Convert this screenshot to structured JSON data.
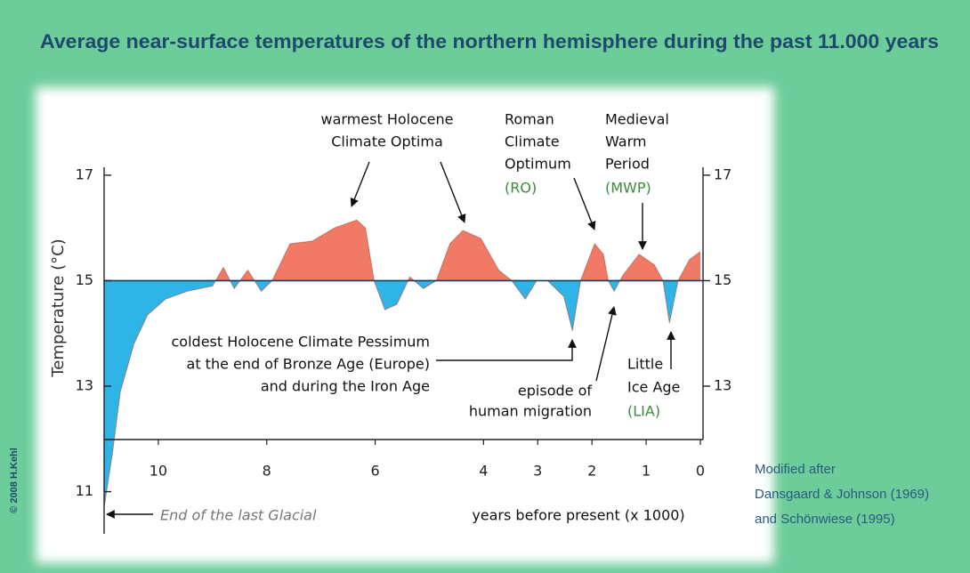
{
  "chart_data": {
    "type": "line",
    "title": "Average near-surface temperatures of the northern hemisphere during the past 11.000 years",
    "y_label": "Temperature (°C)",
    "x_label": "years before present (x 1000)",
    "credit": "© 2008 H.Kehl",
    "source": [
      "Modified after",
      "Dansgaard & Johnson (1969)",
      "and Schönwiese (1995)"
    ],
    "x": [
      11,
      10.85,
      10.7,
      10.45,
      10.2,
      9.87,
      9.46,
      9.0,
      8.8,
      8.6,
      8.35,
      8.1,
      7.9,
      7.57,
      7.16,
      6.75,
      6.34,
      6.18,
      6.02,
      5.82,
      5.6,
      5.36,
      5.11,
      4.87,
      4.62,
      4.38,
      4.05,
      3.72,
      3.48,
      3.23,
      3.02,
      2.82,
      2.52,
      2.36,
      2.21,
      1.95,
      1.79,
      1.7,
      1.59,
      1.43,
      1.13,
      0.85,
      0.69,
      0.57,
      0.41,
      0.2,
      0
    ],
    "series": [
      {
        "color": "#1a3a5a",
        "values": [
          10.7,
          11.7,
          12.9,
          13.8,
          14.35,
          14.65,
          14.8,
          14.9,
          15.25,
          14.85,
          15.2,
          14.8,
          15.0,
          15.7,
          15.75,
          16.0,
          16.15,
          16.0,
          15.0,
          14.45,
          14.55,
          15.07,
          14.85,
          15.0,
          15.7,
          15.95,
          15.8,
          15.2,
          15.0,
          14.65,
          15.0,
          15.0,
          14.7,
          14.05,
          15.0,
          15.7,
          15.5,
          15.0,
          14.8,
          15.1,
          15.5,
          15.3,
          15.0,
          14.2,
          15.0,
          15.4,
          15.55
        ]
      }
    ],
    "reference": 15,
    "warm_color": "#f07a66",
    "cold_color": "#2eb4e6",
    "xlim": [
      11,
      0
    ],
    "xticks": [
      10,
      8,
      6,
      4,
      3,
      2,
      1,
      0
    ],
    "ylim": [
      10.2,
      17.15
    ],
    "yticks": [
      11,
      13,
      15,
      17
    ],
    "y2lim": [
      10.2,
      17.15
    ],
    "y2ticks": [
      13,
      15,
      17
    ],
    "annotations": [
      {
        "text": "warmest Holocene"
      },
      {
        "text": "Climate Optima"
      },
      {
        "text": "Roman"
      },
      {
        "text": "Climate"
      },
      {
        "text": "Optimum"
      },
      {
        "text": "(RO)",
        "color": "#3d8a3d"
      },
      {
        "text": "Medieval"
      },
      {
        "text": "Warm"
      },
      {
        "text": "Period"
      },
      {
        "text": "(MWP)",
        "color": "#3d8a3d"
      },
      {
        "text": "coldest Holocene Climate Pessimum"
      },
      {
        "text": "at the end of Bronze Age (Europe)"
      },
      {
        "text": "and during the Iron Age"
      },
      {
        "text": "episode of"
      },
      {
        "text": "human migration"
      },
      {
        "text": "Little"
      },
      {
        "text": "Ice Age"
      },
      {
        "text": "(LIA)",
        "color": "#3d8a3d"
      },
      {
        "text": "End of the last Glacial",
        "color": "#777777"
      }
    ]
  }
}
